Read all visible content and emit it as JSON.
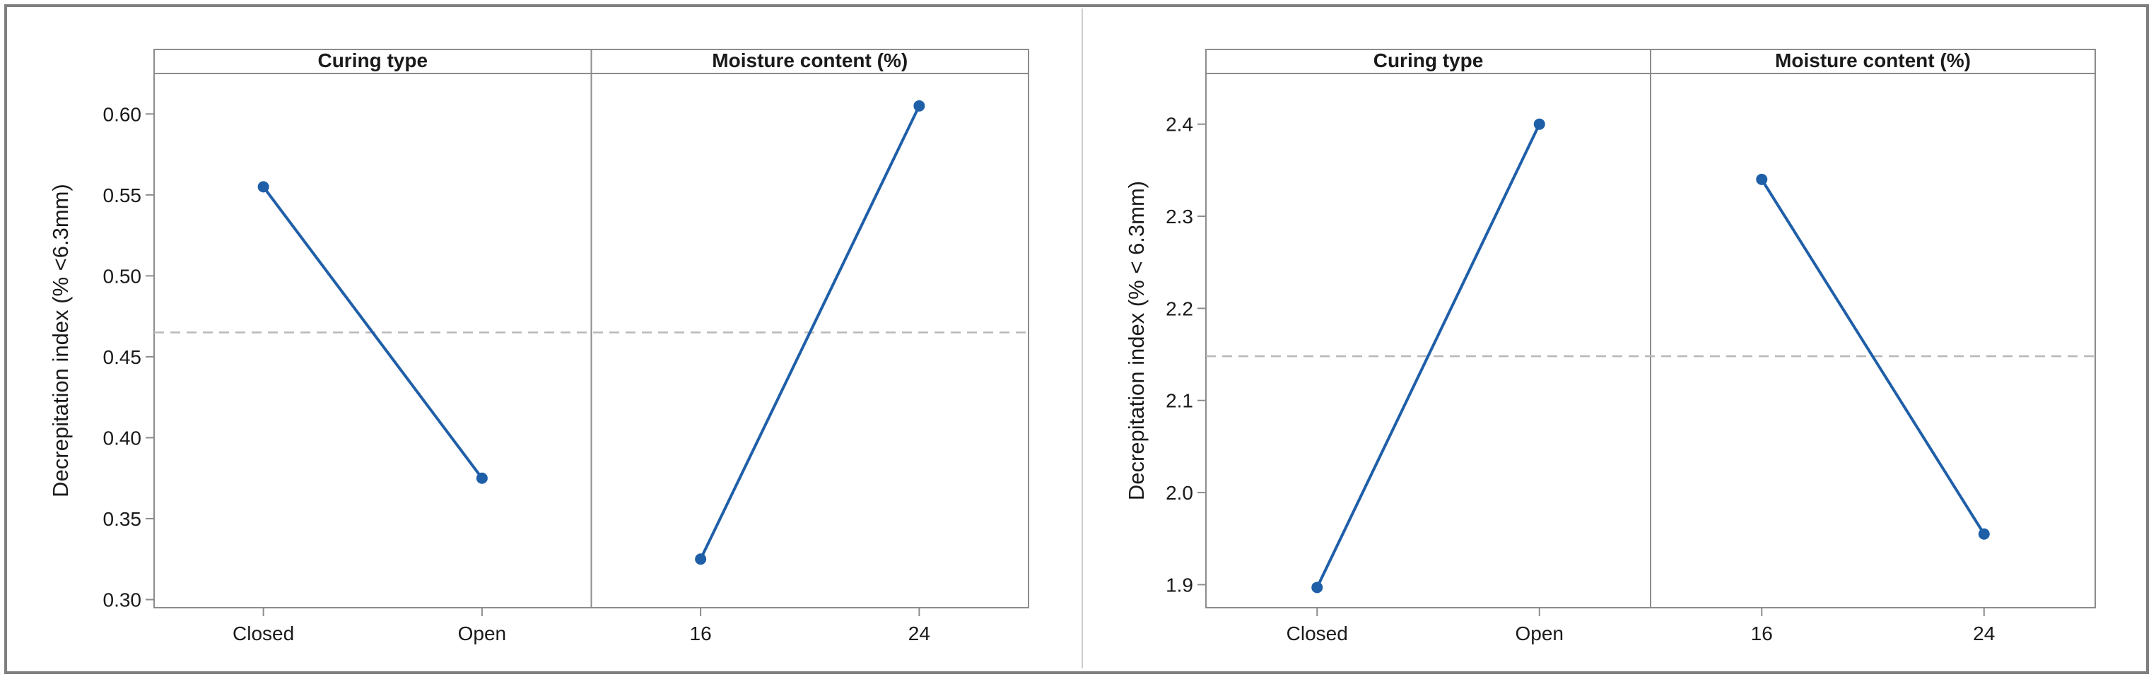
{
  "chart_data": [
    {
      "type": "line",
      "ylabel": "Decrepitation index (% <6.3mm)",
      "ylim": [
        0.295,
        0.625
      ],
      "yticks": [
        "0.30",
        "0.35",
        "0.40",
        "0.45",
        "0.50",
        "0.55",
        "0.60"
      ],
      "reference_mean": 0.465,
      "line_color": "#1f5fa8",
      "reference_color": "#b8b8b8",
      "panels": [
        {
          "name": "Curing type",
          "categories": [
            "Closed",
            "Open"
          ],
          "values": [
            0.555,
            0.375
          ]
        },
        {
          "name": "Moisture content (%)",
          "categories": [
            "16",
            "24"
          ],
          "values": [
            0.325,
            0.605
          ]
        }
      ]
    },
    {
      "type": "line",
      "ylabel": "Decrepitation index (% < 6.3mm)",
      "ylim": [
        1.875,
        2.455
      ],
      "yticks": [
        "1.9",
        "2.0",
        "2.1",
        "2.2",
        "2.3",
        "2.4"
      ],
      "reference_mean": 2.148,
      "line_color": "#1f5fa8",
      "reference_color": "#b8b8b8",
      "panels": [
        {
          "name": "Curing type",
          "categories": [
            "Closed",
            "Open"
          ],
          "values": [
            1.897,
            2.4
          ]
        },
        {
          "name": "Moisture content (%)",
          "categories": [
            "16",
            "24"
          ],
          "values": [
            2.34,
            1.955
          ]
        }
      ]
    }
  ]
}
